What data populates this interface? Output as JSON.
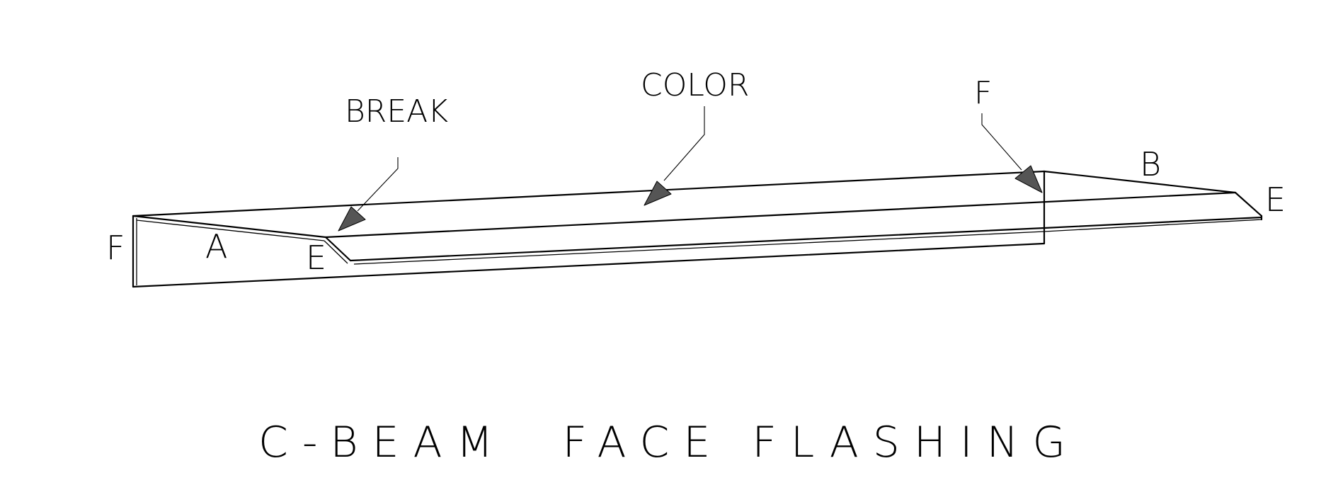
{
  "drawing": {
    "title": "C-BEAM  FACE FLASHING",
    "callouts": {
      "break": "BREAK",
      "color": "COLOR",
      "fold": "F"
    },
    "dimension_labels": {
      "left_face": "F",
      "left_panel": "A",
      "left_hem": "E",
      "right_panel": "B",
      "right_hem": "E"
    },
    "colors": {
      "line": "#000000",
      "arrow_fill": "#555555",
      "background": "#ffffff"
    }
  }
}
